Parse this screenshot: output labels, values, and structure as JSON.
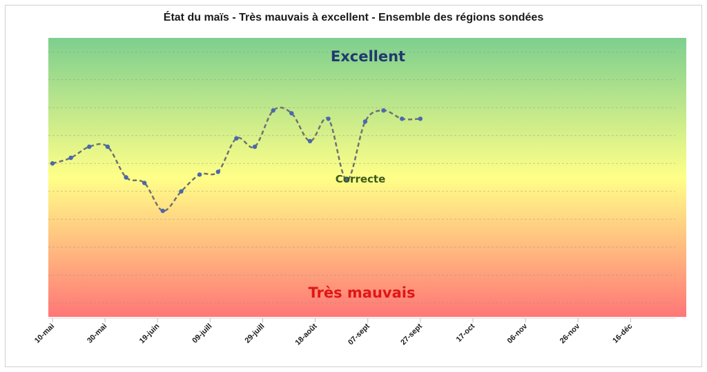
{
  "chart_data": {
    "type": "line",
    "title": "État du maïs - Très mauvais à excellent - Ensemble des régions sondées",
    "xlabel": "",
    "ylabel": "",
    "x_tick_labels": [
      "10-mai",
      "30-mai",
      "19-juin",
      "09-juill",
      "29-juill",
      "18-août",
      "07-sept",
      "27-sept",
      "17-oct",
      "06-nov",
      "26-nov",
      "16-déc"
    ],
    "x_tick_days": [
      0,
      20,
      40,
      60,
      80,
      100,
      120,
      140,
      160,
      180,
      200,
      220
    ],
    "x_range_days": [
      0,
      237
    ],
    "band_labels": {
      "top": "Excellent",
      "middle": "Correcte",
      "bottom": "Très mauvais"
    },
    "band_colors": {
      "top": "#7dcf8e",
      "middle": "#ffff88",
      "bottom": "#ff7777"
    },
    "y_range": [
      0,
      10
    ],
    "grid": "horizontal-dashed",
    "series": [
      {
        "x_days": [
          0,
          7,
          14,
          21,
          28,
          35,
          42,
          49,
          56,
          63,
          70,
          77,
          84,
          91,
          98,
          105,
          112,
          119,
          126,
          133,
          140
        ],
        "values": [
          5.5,
          5.7,
          6.1,
          6.1,
          5.0,
          4.8,
          3.8,
          4.5,
          5.1,
          5.2,
          6.4,
          6.1,
          7.4,
          7.3,
          6.3,
          7.1,
          4.9,
          7.0,
          7.4,
          7.1,
          7.1
        ],
        "line_color": "#707070",
        "marker_color": "#4a67b0"
      }
    ]
  }
}
